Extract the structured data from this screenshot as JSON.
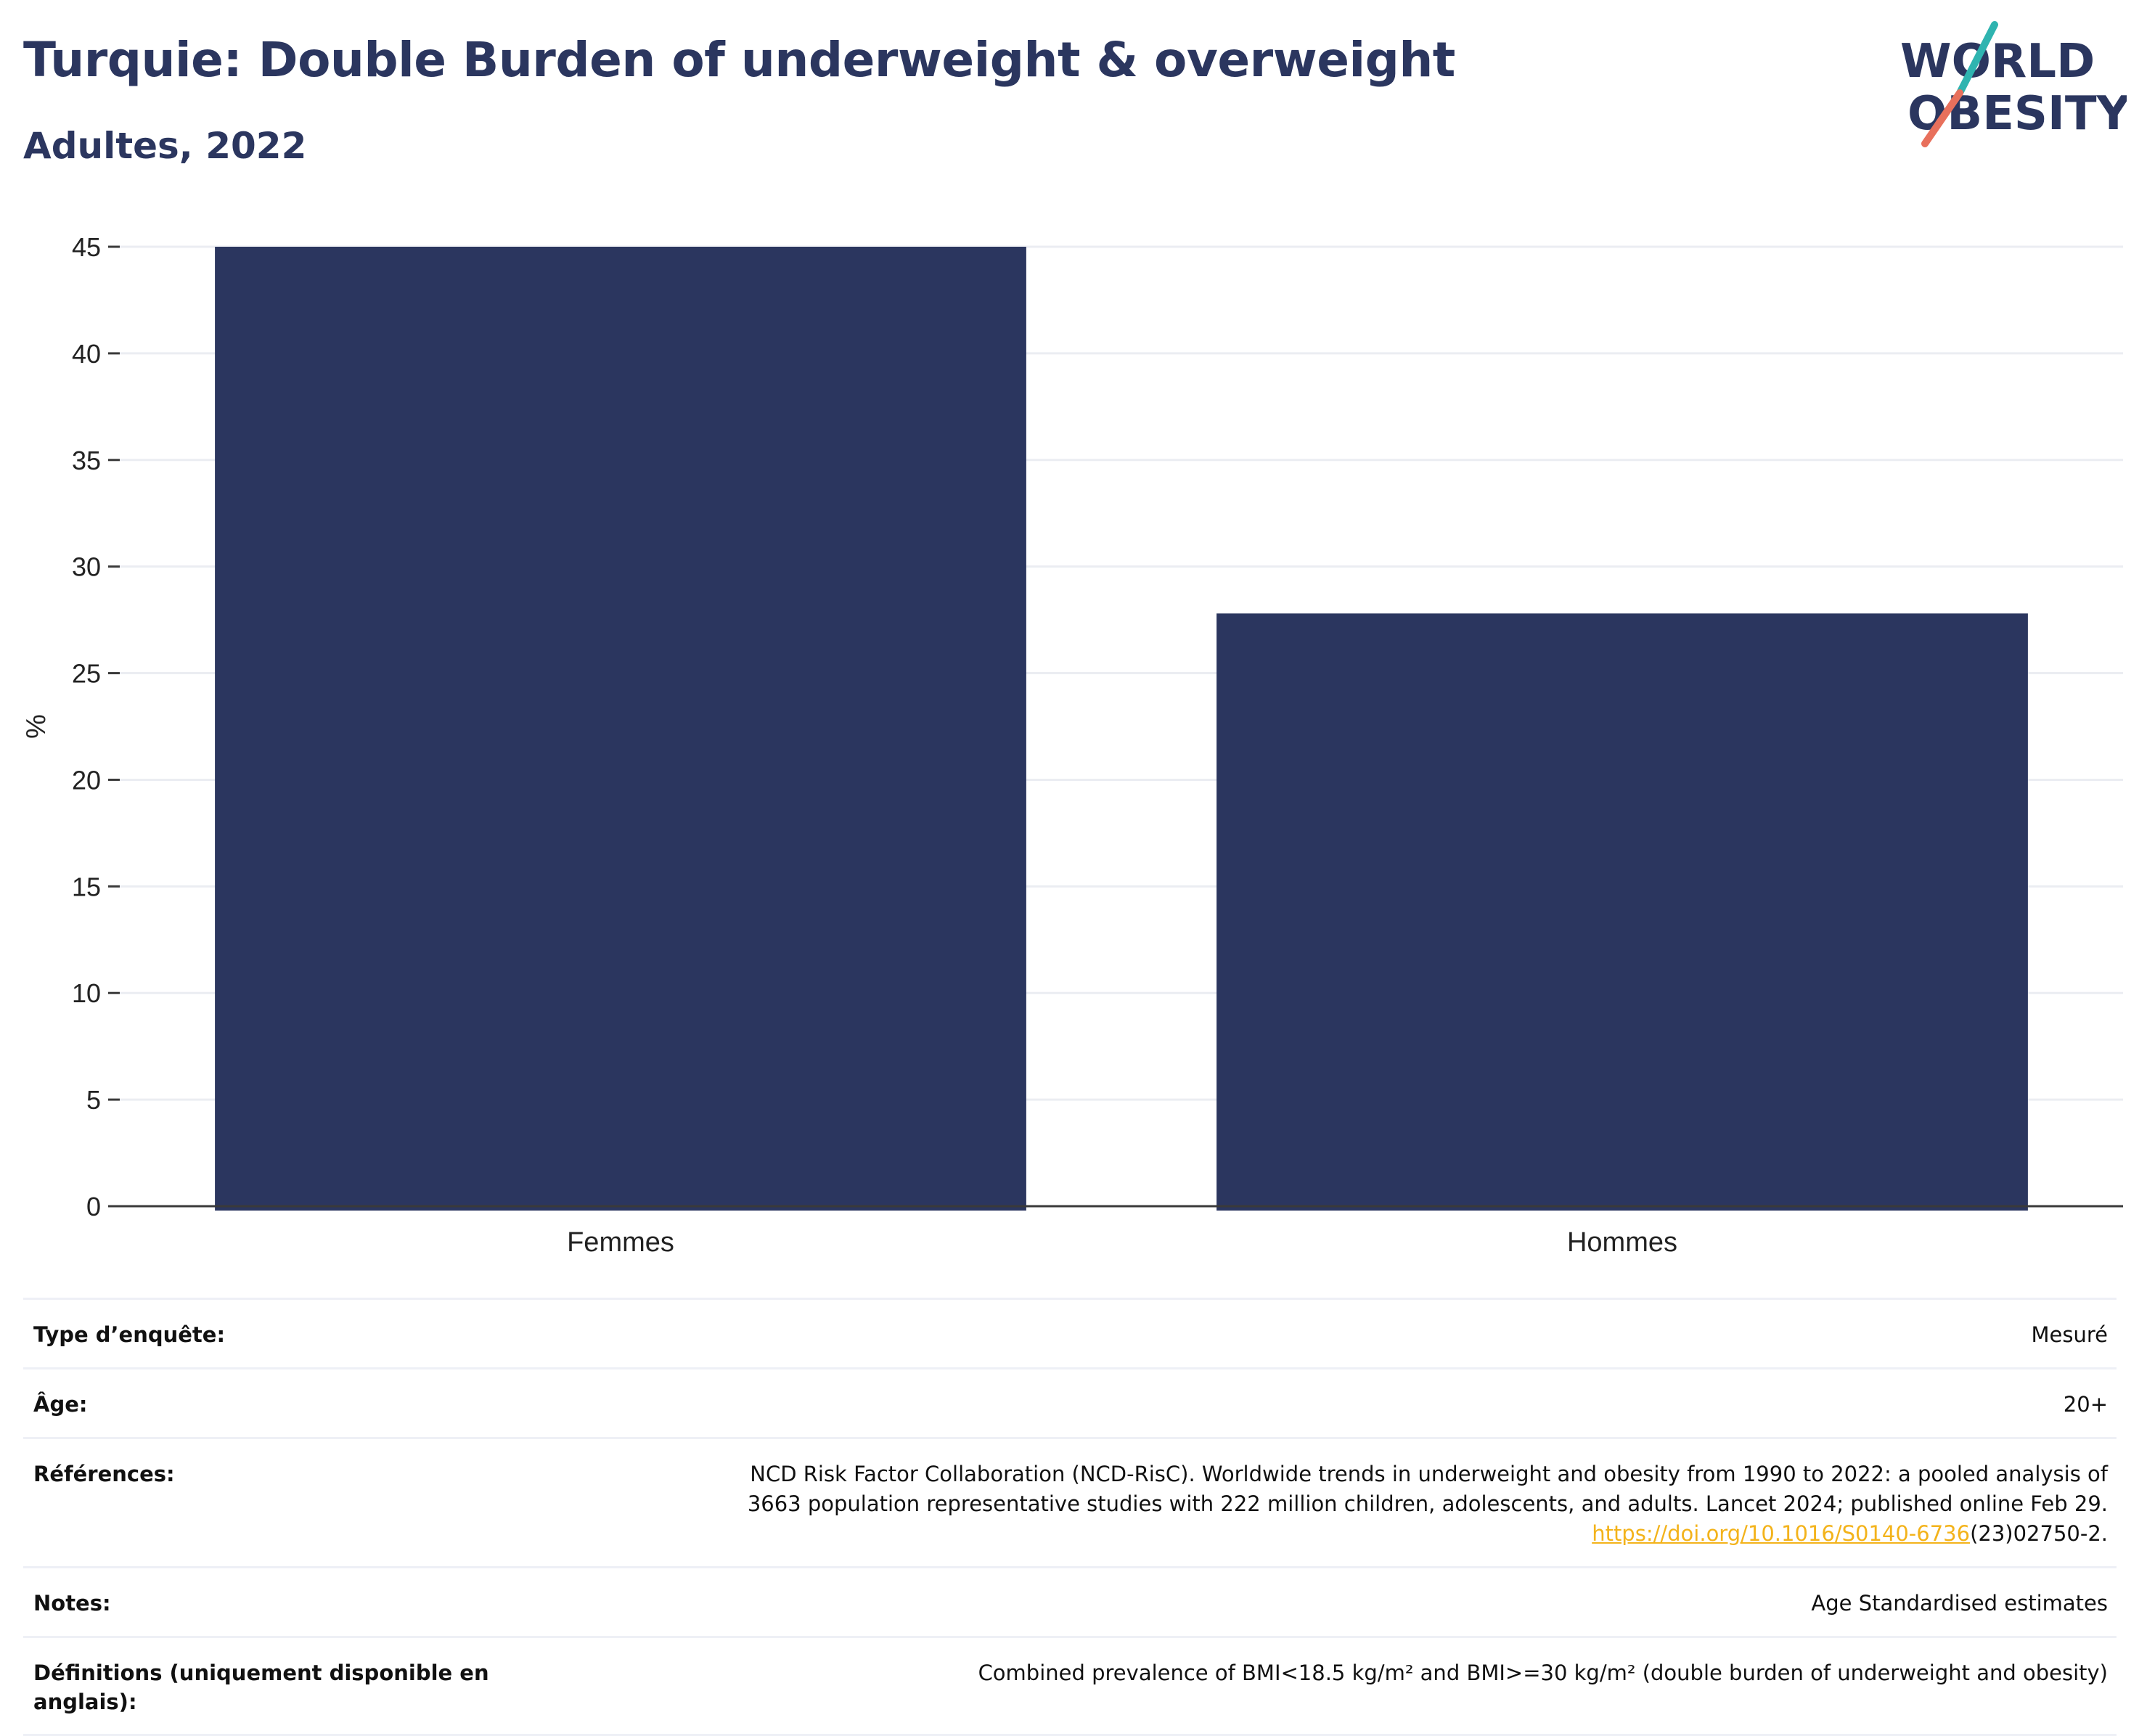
{
  "header": {
    "title": "Turquie: Double Burden of underweight & overweight",
    "subtitle": "Adultes, 2022"
  },
  "logo": {
    "line1": "WORLD",
    "line2": "OBESITY",
    "colors": {
      "text": "#2b365f",
      "slash_top": "#2fb4b0",
      "slash_bottom": "#e8705c"
    }
  },
  "chart_data": {
    "type": "bar",
    "categories": [
      "Femmes",
      "Hommes"
    ],
    "values": [
      45.0,
      27.8
    ],
    "title": "",
    "xlabel": "",
    "ylabel": "%",
    "ylim": [
      0,
      45
    ],
    "yticks": [
      0,
      5,
      10,
      15,
      20,
      25,
      30,
      35,
      40,
      45
    ],
    "grid": true,
    "bar_color": "#2b365f"
  },
  "meta": {
    "survey_type": {
      "label": "Type d’enquête:",
      "value": "Mesuré"
    },
    "age": {
      "label": "Âge:",
      "value": "20+"
    },
    "references": {
      "label": "Références:",
      "line1": "NCD Risk Factor Collaboration (NCD-RisC). Worldwide trends in underweight and obesity from 1990 to 2022: a pooled analysis of",
      "line2": "3663 population representative studies with 222 million children, adolescents, and adults. Lancet 2024; published online Feb 29.",
      "link": "https://doi.org/10.1016/S0140-6736",
      "link_suffix": "(23)02750-2."
    },
    "notes": {
      "label": "Notes:",
      "value": "Age Standardised estimates"
    },
    "definitions": {
      "label": "Définitions (uniquement disponible en anglais):",
      "value": "Combined prevalence of BMI<18.5 kg/m² and BMI>=30 kg/m² (double burden of underweight and obesity)"
    }
  }
}
